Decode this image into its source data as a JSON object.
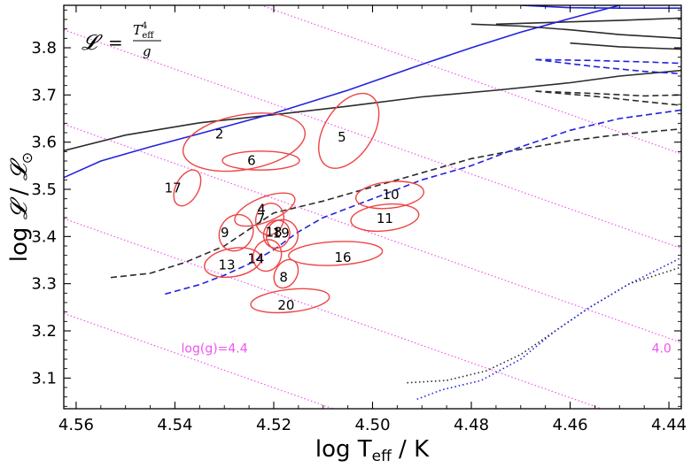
{
  "chart_data": {
    "type": "scatter",
    "title": "",
    "xlabel": "log T_eff / K",
    "xlabel_parts": {
      "pre": "log T",
      "sub": "eff",
      "post": " / K"
    },
    "ylabel": "log 𝓛 / 𝓛⊙",
    "ylabel_parts": {
      "a": "log ",
      "L": "𝓛",
      "mid": " / ",
      "L2": "𝓛",
      "sun": "⊙"
    },
    "xlim": [
      4.5625,
      4.4375
    ],
    "ylim": [
      3.035,
      3.89
    ],
    "xticks": [
      {
        "v": 4.56,
        "label": "4.56"
      },
      {
        "v": 4.54,
        "label": "4.54"
      },
      {
        "v": 4.52,
        "label": "4.52"
      },
      {
        "v": 4.5,
        "label": "4.50"
      },
      {
        "v": 4.48,
        "label": "4.48"
      },
      {
        "v": 4.46,
        "label": "4.46"
      },
      {
        "v": 4.44,
        "label": "4.44"
      }
    ],
    "yticks": [
      {
        "v": 3.1,
        "label": "3.1"
      },
      {
        "v": 3.2,
        "label": "3.2"
      },
      {
        "v": 3.3,
        "label": "3.3"
      },
      {
        "v": 3.4,
        "label": "3.4"
      },
      {
        "v": 3.5,
        "label": "3.5"
      },
      {
        "v": 3.6,
        "label": "3.6"
      },
      {
        "v": 3.7,
        "label": "3.7"
      },
      {
        "v": 3.8,
        "label": "3.8"
      }
    ],
    "formula": {
      "lhs": "𝓛",
      "eq": "=",
      "num_base": "T",
      "num_sup": "4",
      "num_sub": "eff",
      "den": "g"
    },
    "iso_gravity_lines": [
      {
        "name": "log(g)=4.4",
        "label": "log(g)=4.4",
        "points": [
          [
            4.5625,
            3.237
          ],
          [
            4.508,
            3.035
          ]
        ]
      },
      {
        "name": "log(g)=4.2",
        "label": "",
        "points": [
          [
            4.5625,
            3.438
          ],
          [
            4.4375,
            2.975
          ]
        ]
      },
      {
        "name": "log(g)=4.0",
        "label": "4.0",
        "points": [
          [
            4.5625,
            3.638
          ],
          [
            4.4375,
            3.175
          ]
        ]
      },
      {
        "name": "log(g)=3.8",
        "label": "",
        "points": [
          [
            4.5625,
            3.838
          ],
          [
            4.4375,
            3.375
          ]
        ]
      },
      {
        "name": "log(g)=3.6",
        "label": "",
        "points": [
          [
            4.5625,
            4.038
          ],
          [
            4.4375,
            3.575
          ]
        ]
      }
    ],
    "iso_labels": [
      {
        "text": "log(g)=4.4",
        "x": 4.532,
        "y": 3.163
      },
      {
        "text": "4.0",
        "x": 4.4415,
        "y": 3.163
      }
    ],
    "tracks": [
      {
        "name": "black-solid-1",
        "color": "#2b2b2b",
        "style": "solid",
        "points": [
          [
            4.5625,
            3.582
          ],
          [
            4.55,
            3.615
          ],
          [
            4.535,
            3.641
          ],
          [
            4.52,
            3.658
          ],
          [
            4.505,
            3.676
          ],
          [
            4.49,
            3.696
          ],
          [
            4.475,
            3.71
          ],
          [
            4.46,
            3.726
          ],
          [
            4.45,
            3.74
          ],
          [
            4.4375,
            3.752
          ]
        ]
      },
      {
        "name": "black-solid-2",
        "color": "#2b2b2b",
        "style": "solid",
        "points": [
          [
            4.48,
            3.85
          ],
          [
            4.47,
            3.846
          ],
          [
            4.46,
            3.838
          ],
          [
            4.45,
            3.828
          ],
          [
            4.4375,
            3.82
          ]
        ]
      },
      {
        "name": "black-solid-3",
        "color": "#2b2b2b",
        "style": "solid",
        "points": [
          [
            4.475,
            3.85
          ],
          [
            4.46,
            3.855
          ],
          [
            4.45,
            3.858
          ],
          [
            4.4375,
            3.863
          ]
        ]
      },
      {
        "name": "black-solid-4",
        "color": "#2b2b2b",
        "style": "solid",
        "points": [
          [
            4.46,
            3.81
          ],
          [
            4.45,
            3.802
          ],
          [
            4.4375,
            3.797
          ]
        ]
      },
      {
        "name": "blue-solid-1",
        "color": "#2222dd",
        "style": "solid",
        "points": [
          [
            4.5625,
            3.525
          ],
          [
            4.555,
            3.56
          ],
          [
            4.545,
            3.59
          ],
          [
            4.535,
            3.618
          ],
          [
            4.52,
            3.661
          ],
          [
            4.505,
            3.71
          ],
          [
            4.49,
            3.765
          ],
          [
            4.48,
            3.8
          ],
          [
            4.47,
            3.833
          ],
          [
            4.46,
            3.862
          ],
          [
            4.45,
            3.89
          ]
        ]
      },
      {
        "name": "blue-solid-2",
        "color": "#2222dd",
        "style": "solid",
        "points": [
          [
            4.47,
            3.89
          ],
          [
            4.46,
            3.885
          ],
          [
            4.45,
            3.884
          ],
          [
            4.4375,
            3.884
          ]
        ]
      },
      {
        "name": "black-dashed-1",
        "color": "#2b2b2b",
        "style": "dashed",
        "points": [
          [
            4.553,
            3.313
          ],
          [
            4.545,
            3.322
          ],
          [
            4.538,
            3.345
          ],
          [
            4.53,
            3.38
          ],
          [
            4.525,
            3.415
          ],
          [
            4.52,
            3.45
          ],
          [
            4.51,
            3.475
          ],
          [
            4.5,
            3.505
          ],
          [
            4.49,
            3.535
          ],
          [
            4.48,
            3.565
          ],
          [
            4.47,
            3.585
          ],
          [
            4.46,
            3.603
          ],
          [
            4.45,
            3.616
          ],
          [
            4.4375,
            3.628
          ]
        ]
      },
      {
        "name": "black-dashed-2",
        "color": "#2b2b2b",
        "style": "dashed",
        "points": [
          [
            4.467,
            3.708
          ],
          [
            4.455,
            3.703
          ],
          [
            4.445,
            3.698
          ],
          [
            4.4375,
            3.7
          ]
        ]
      },
      {
        "name": "black-dashed-3",
        "color": "#2b2b2b",
        "style": "dashed",
        "points": [
          [
            4.467,
            3.708
          ],
          [
            4.455,
            3.697
          ],
          [
            4.445,
            3.686
          ],
          [
            4.4375,
            3.678
          ]
        ]
      },
      {
        "name": "blue-dashed-1",
        "color": "#2222dd",
        "style": "dashed",
        "points": [
          [
            4.542,
            3.278
          ],
          [
            4.535,
            3.298
          ],
          [
            4.53,
            3.318
          ],
          [
            4.525,
            3.342
          ],
          [
            4.52,
            3.372
          ],
          [
            4.515,
            3.41
          ],
          [
            4.51,
            3.44
          ],
          [
            4.5,
            3.48
          ],
          [
            4.49,
            3.52
          ],
          [
            4.48,
            3.55
          ],
          [
            4.47,
            3.59
          ],
          [
            4.46,
            3.625
          ],
          [
            4.45,
            3.65
          ],
          [
            4.4375,
            3.668
          ]
        ]
      },
      {
        "name": "blue-dashed-2",
        "color": "#2222dd",
        "style": "dashed",
        "points": [
          [
            4.467,
            3.775
          ],
          [
            4.455,
            3.773
          ],
          [
            4.445,
            3.77
          ],
          [
            4.4375,
            3.767
          ]
        ]
      },
      {
        "name": "blue-dashed-3",
        "color": "#2222dd",
        "style": "dashed",
        "points": [
          [
            4.467,
            3.775
          ],
          [
            4.455,
            3.76
          ],
          [
            4.445,
            3.75
          ],
          [
            4.4375,
            3.745
          ]
        ]
      },
      {
        "name": "black-dotted-1",
        "color": "#2b2b2b",
        "style": "dotted",
        "points": [
          [
            4.493,
            3.09
          ],
          [
            4.485,
            3.095
          ],
          [
            4.477,
            3.115
          ],
          [
            4.47,
            3.15
          ],
          [
            4.463,
            3.2
          ],
          [
            4.456,
            3.25
          ],
          [
            4.448,
            3.3
          ],
          [
            4.4375,
            3.335
          ]
        ]
      },
      {
        "name": "blue-dotted-1",
        "color": "#2222dd",
        "style": "dotted",
        "points": [
          [
            4.491,
            3.055
          ],
          [
            4.486,
            3.075
          ],
          [
            4.478,
            3.095
          ],
          [
            4.47,
            3.14
          ],
          [
            4.463,
            3.2
          ],
          [
            4.456,
            3.25
          ],
          [
            4.448,
            3.3
          ],
          [
            4.4375,
            3.355
          ]
        ]
      }
    ],
    "ellipses": [
      {
        "label": "2",
        "cx": 4.526,
        "cy": 3.6,
        "rx": 0.0125,
        "ry": 0.058,
        "angle": -10
      },
      {
        "label": "6",
        "cx": 4.5226,
        "cy": 3.561,
        "rx": 0.0078,
        "ry": 0.02,
        "angle": 0
      },
      {
        "label": "5",
        "cx": 4.5048,
        "cy": 3.624,
        "rx": 0.0049,
        "ry": 0.088,
        "angle": 32
      },
      {
        "label": "17",
        "cx": 4.5375,
        "cy": 3.503,
        "rx": 0.0023,
        "ry": 0.041,
        "angle": 28
      },
      {
        "label": "10",
        "cx": 4.4965,
        "cy": 3.488,
        "rx": 0.0069,
        "ry": 0.028,
        "angle": -6
      },
      {
        "label": "11",
        "cx": 4.4975,
        "cy": 3.44,
        "rx": 0.0069,
        "ry": 0.028,
        "angle": -6
      },
      {
        "label": "4",
        "cx": 4.5218,
        "cy": 3.457,
        "rx": 0.0065,
        "ry": 0.026,
        "angle": -22
      },
      {
        "label": "7",
        "cx": 4.5208,
        "cy": 3.437,
        "rx": 0.0028,
        "ry": 0.034,
        "angle": 18
      },
      {
        "label": "9",
        "cx": 4.5276,
        "cy": 3.408,
        "rx": 0.0033,
        "ry": 0.04,
        "angle": 32
      },
      {
        "label": "18",
        "cx": 4.5194,
        "cy": 3.405,
        "rx": 0.0026,
        "ry": 0.03,
        "angle": 24
      },
      {
        "label": "19",
        "cx": 4.5183,
        "cy": 3.402,
        "rx": 0.0032,
        "ry": 0.034,
        "angle": 24
      },
      {
        "label": "13",
        "cx": 4.5283,
        "cy": 3.345,
        "rx": 0.0058,
        "ry": 0.03,
        "angle": -10
      },
      {
        "label": "14",
        "cx": 4.5213,
        "cy": 3.36,
        "rx": 0.0028,
        "ry": 0.034,
        "angle": 22
      },
      {
        "label": "16",
        "cx": 4.5075,
        "cy": 3.364,
        "rx": 0.0095,
        "ry": 0.025,
        "angle": -3
      },
      {
        "label": "8",
        "cx": 4.5175,
        "cy": 3.321,
        "rx": 0.0022,
        "ry": 0.032,
        "angle": 30
      },
      {
        "label": "20",
        "cx": 4.5167,
        "cy": 3.264,
        "rx": 0.008,
        "ry": 0.024,
        "angle": -6
      }
    ],
    "ellipse_label_pos": [
      {
        "label": "2",
        "x": 4.531,
        "y": 3.617
      },
      {
        "label": "6",
        "x": 4.5245,
        "y": 3.561
      },
      {
        "label": "5",
        "x": 4.5062,
        "y": 3.611
      },
      {
        "label": "17",
        "x": 4.5404,
        "y": 3.503
      },
      {
        "label": "10",
        "x": 4.4963,
        "y": 3.489
      },
      {
        "label": "11",
        "x": 4.4975,
        "y": 3.438
      },
      {
        "label": "4",
        "x": 4.5225,
        "y": 3.458
      },
      {
        "label": "7",
        "x": 4.5226,
        "y": 3.438
      },
      {
        "label": "9",
        "x": 4.5299,
        "y": 3.408
      },
      {
        "label": "18",
        "x": 4.52,
        "y": 3.409
      },
      {
        "label": "19",
        "x": 4.5185,
        "y": 3.407
      },
      {
        "label": "13",
        "x": 4.5295,
        "y": 3.34
      },
      {
        "label": "14",
        "x": 4.5236,
        "y": 3.353
      },
      {
        "label": "16",
        "x": 4.506,
        "y": 3.356
      },
      {
        "label": "8",
        "x": 4.518,
        "y": 3.313
      },
      {
        "label": "20",
        "x": 4.5175,
        "y": 3.254
      }
    ],
    "colors": {
      "ellipse": "#ee4444",
      "iso": "#ee55ee",
      "black": "#2b2b2b",
      "blue": "#2222dd"
    }
  }
}
